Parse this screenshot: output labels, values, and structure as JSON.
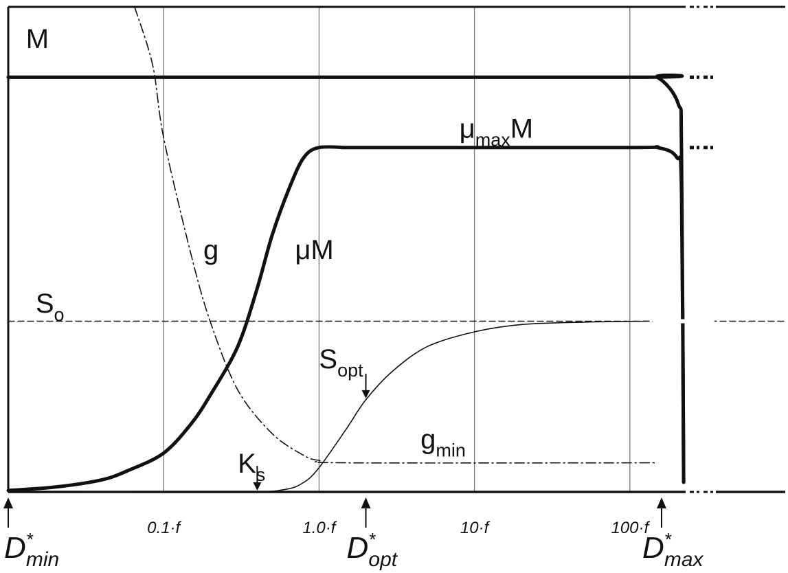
{
  "chart_data": {
    "type": "line",
    "x_scale": "log",
    "xlim": [
      0.01,
      1000
    ],
    "ylim": [
      0,
      1
    ],
    "grid": true,
    "x_ticks": [
      {
        "value": 0.1,
        "label": "0.1·f"
      },
      {
        "value": 1.0,
        "label": "1.0·f"
      },
      {
        "value": 10,
        "label": "10·f"
      },
      {
        "value": 100,
        "label": "100·f"
      }
    ],
    "series": [
      {
        "name": "M",
        "style": "thick",
        "points": [
          [
            0.01,
            0.855
          ],
          [
            100,
            0.855
          ],
          [
            150,
            0.855
          ],
          [
            205,
            0.8
          ],
          [
            215,
            0.7
          ],
          [
            222,
            0.02
          ]
        ]
      },
      {
        "name": "μmaxM",
        "style": "thick",
        "points": [
          [
            0.01,
            0.003
          ],
          [
            0.02,
            0.01
          ],
          [
            0.04,
            0.025
          ],
          [
            0.06,
            0.045
          ],
          [
            0.1,
            0.08
          ],
          [
            0.15,
            0.14
          ],
          [
            0.2,
            0.2
          ],
          [
            0.3,
            0.3
          ],
          [
            0.4,
            0.42
          ],
          [
            0.5,
            0.53
          ],
          [
            0.65,
            0.63
          ],
          [
            0.8,
            0.69
          ],
          [
            1.0,
            0.71
          ],
          [
            1.5,
            0.71
          ],
          [
            2.0,
            0.71
          ],
          [
            100,
            0.71
          ],
          [
            150,
            0.71
          ],
          [
            200,
            0.69
          ],
          [
            215,
            0.62
          ],
          [
            222,
            0.02
          ]
        ]
      },
      {
        "name": "S",
        "style": "thin",
        "points": [
          [
            0.01,
            0.0
          ],
          [
            0.3,
            0.0
          ],
          [
            0.6,
            0.005
          ],
          [
            0.8,
            0.02
          ],
          [
            1.0,
            0.05
          ],
          [
            1.5,
            0.13
          ],
          [
            2.0,
            0.19
          ],
          [
            3.0,
            0.25
          ],
          [
            5.0,
            0.3
          ],
          [
            10,
            0.33
          ],
          [
            20,
            0.345
          ],
          [
            50,
            0.35
          ],
          [
            130,
            0.352
          ]
        ]
      },
      {
        "name": "g",
        "style": "dash-dot",
        "points": [
          [
            0.065,
            1.0
          ],
          [
            0.085,
            0.88
          ],
          [
            0.1,
            0.73
          ],
          [
            0.15,
            0.49
          ],
          [
            0.2,
            0.35
          ],
          [
            0.3,
            0.21
          ],
          [
            0.5,
            0.12
          ],
          [
            0.8,
            0.075
          ],
          [
            1.0,
            0.065
          ],
          [
            1.5,
            0.06
          ],
          [
            150,
            0.06
          ]
        ]
      },
      {
        "name": "S0",
        "style": "dashed",
        "points": [
          [
            0.01,
            0.352
          ],
          [
            1000,
            0.352
          ]
        ]
      }
    ],
    "annotations": [
      {
        "text": "M",
        "x": 0.013,
        "y": 0.915
      },
      {
        "text": "μmaxM",
        "x": 8.0,
        "y": 0.73
      },
      {
        "text": "μM",
        "x": 0.7,
        "y": 0.48
      },
      {
        "text": "g",
        "x": 0.18,
        "y": 0.48
      },
      {
        "text": "So",
        "x": 0.015,
        "y": 0.37
      },
      {
        "text": "Sopt",
        "x": 1.0,
        "y": 0.255
      },
      {
        "text": "gmin",
        "x": 4.5,
        "y": 0.09
      },
      {
        "text": "Ks",
        "x": 0.3,
        "y": 0.04
      }
    ],
    "arrows": [
      {
        "label": "Ks",
        "x": 0.4,
        "y": 0.0
      },
      {
        "label": "Sopt",
        "x": 2.0,
        "y": 0.19
      }
    ],
    "markers": [
      {
        "label": "D",
        "sub": "min",
        "x": 0.01
      },
      {
        "label": "D",
        "sub": "opt",
        "x": 2.0
      },
      {
        "label": "D",
        "sub": "max",
        "x": 160
      }
    ]
  }
}
